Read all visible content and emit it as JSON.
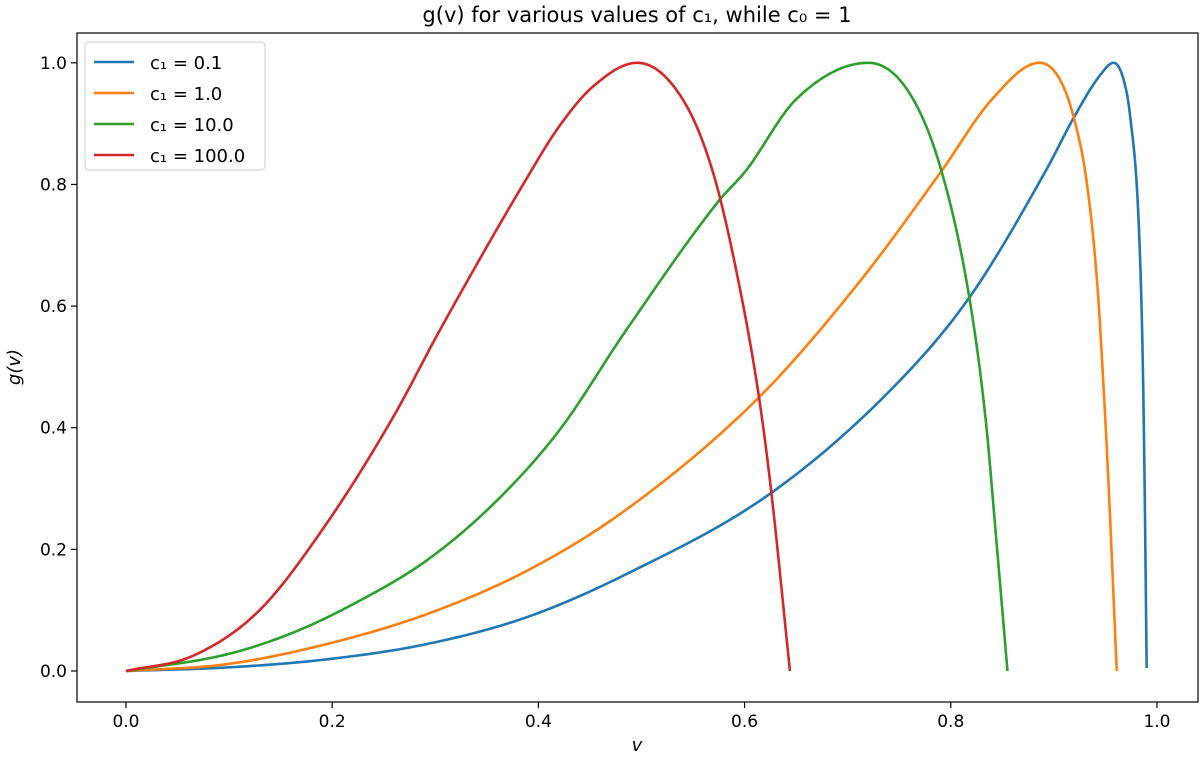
{
  "chart_data": {
    "type": "line",
    "title": "g(v) for various values of c₁, while c₀ = 1",
    "xlabel": "v",
    "ylabel": "g(v)",
    "xlim": [
      -0.0475,
      1.0398
    ],
    "ylim": [
      -0.051,
      1.049
    ],
    "xticks": [
      0.0,
      0.2,
      0.4,
      0.6,
      0.8,
      1.0
    ],
    "xtick_labels": [
      "0.0",
      "0.2",
      "0.4",
      "0.6",
      "0.8",
      "1.0"
    ],
    "yticks": [
      0.0,
      0.2,
      0.4,
      0.6,
      0.8,
      1.0
    ],
    "ytick_labels": [
      "0.0",
      "0.2",
      "0.4",
      "0.6",
      "0.8",
      "1.0"
    ],
    "grid": false,
    "legend_position": "top-left",
    "series": [
      {
        "name": "c₁ = 0.1",
        "color": "#1f77b4",
        "x": [
          0,
          0.1,
          0.194,
          0.291,
          0.388,
          0.485,
          0.626,
          0.744,
          0.818,
          0.892,
          0.92,
          0.945,
          0.958,
          0.968,
          0.974,
          0.982,
          0.986,
          0.988,
          0.99
        ],
        "y": [
          0,
          0.006,
          0.019,
          0.044,
          0.088,
          0.159,
          0.293,
          0.466,
          0.614,
          0.822,
          0.912,
          0.98,
          1.0,
          0.97,
          0.912,
          0.747,
          0.528,
          0.308,
          0.005
        ]
      },
      {
        "name": "c₁ = 1.0",
        "color": "#ff7f0e",
        "x": [
          0,
          0.097,
          0.194,
          0.291,
          0.388,
          0.485,
          0.614,
          0.712,
          0.791,
          0.84,
          0.886,
          0.905,
          0.919,
          0.932,
          0.942,
          0.948,
          0.953,
          0.961
        ],
        "y": [
          0,
          0.011,
          0.044,
          0.093,
          0.164,
          0.265,
          0.45,
          0.641,
          0.822,
          0.94,
          1.0,
          0.975,
          0.912,
          0.802,
          0.638,
          0.473,
          0.308,
          0
        ]
      },
      {
        "name": "c₁ = 10.0",
        "color": "#2ca02c",
        "x": [
          0,
          0.097,
          0.162,
          0.226,
          0.291,
          0.356,
          0.42,
          0.485,
          0.575,
          0.601,
          0.65,
          0.72,
          0.76,
          0.791,
          0.818,
          0.834,
          0.844,
          0.855
        ],
        "y": [
          0,
          0.027,
          0.063,
          0.115,
          0.181,
          0.274,
          0.395,
          0.56,
          0.773,
          0.822,
          0.94,
          1.0,
          0.95,
          0.822,
          0.614,
          0.411,
          0.219,
          0
        ]
      },
      {
        "name": "c₁ = 100.0",
        "color": "#d62728",
        "x": [
          0,
          0.065,
          0.129,
          0.194,
          0.259,
          0.304,
          0.388,
          0.42,
          0.453,
          0.496,
          0.54,
          0.569,
          0.592,
          0.614,
          0.626,
          0.644
        ],
        "y": [
          0,
          0.025,
          0.099,
          0.241,
          0.417,
          0.559,
          0.808,
          0.895,
          0.961,
          1.0,
          0.94,
          0.822,
          0.658,
          0.45,
          0.293,
          0
        ]
      }
    ]
  }
}
